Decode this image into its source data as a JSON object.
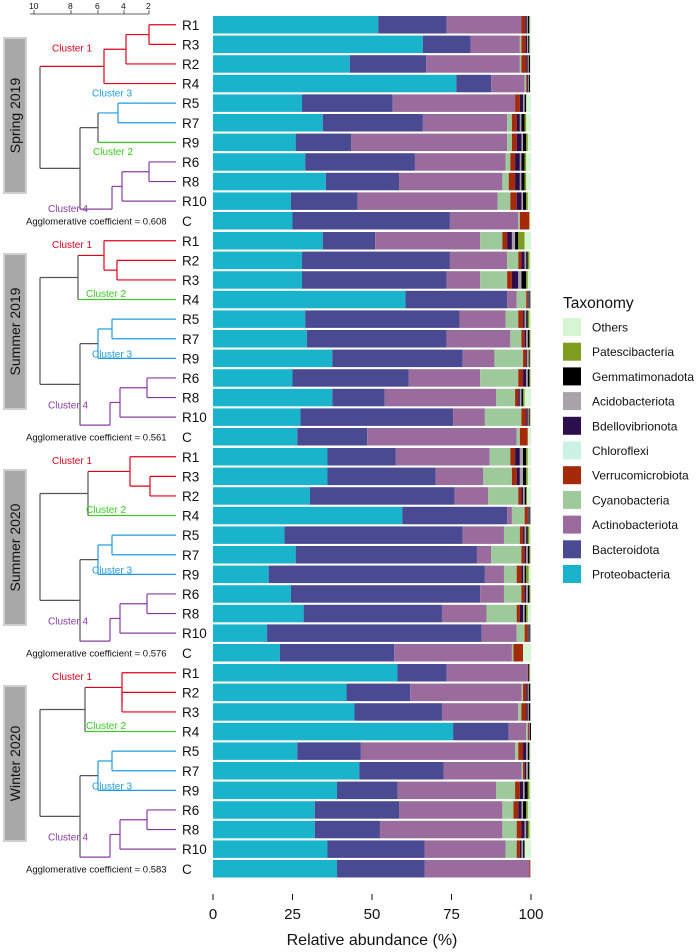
{
  "colors": {
    "Proteobacteria": "#1ab3cc",
    "Bacteroidota": "#4a4a93",
    "Actinobacteriota": "#9a6b9d",
    "Cyanobacteria": "#9ec99a",
    "Verrucomicrobiota": "#a52a0a",
    "Chloroflexi": "#ccf2e6",
    "Bdellovibrionota": "#2b0e4d",
    "Acidobacteriota": "#aaa2aa",
    "Gemmatimonadota": "#000000",
    "Patescibacteria": "#7e9c1e",
    "Others": "#d6f5d2",
    "cluster1": "#e3001b",
    "cluster2": "#35cf1c",
    "cluster3": "#1e9ce0",
    "cluster4": "#8a3ca5",
    "trunk": "#555555"
  },
  "scale_ticks": [
    "10",
    "8",
    "6",
    "4",
    "2"
  ],
  "chart_data": {
    "type": "bar",
    "orientation": "horizontal",
    "stacked": true,
    "xlabel": "Relative abundance (%)",
    "xlim": [
      0,
      100
    ],
    "xticks": [
      "0",
      "25",
      "50",
      "75",
      "100"
    ],
    "legend": {
      "title": "Taxonomy",
      "position": "right",
      "entries": [
        "Others",
        "Patescibacteria",
        "Gemmatimonadota",
        "Acidobacteriota",
        "Bdellovibrionota",
        "Chloroflexi",
        "Verrucomicrobiota",
        "Cyanobacteria",
        "Actinobacteriota",
        "Bacteroidota",
        "Proteobacteria"
      ]
    },
    "series_order": [
      "Proteobacteria",
      "Bacteroidota",
      "Actinobacteriota",
      "Cyanobacteria",
      "Verrucomicrobiota",
      "Chloroflexi",
      "Bdellovibrionota",
      "Acidobacteriota",
      "Gemmatimonadota",
      "Patescibacteria",
      "Others"
    ],
    "panels": [
      {
        "season": "Spring 2019",
        "coefficient": "Agglomerative coefficient = 0.608",
        "clusters": [
          "Cluster 1",
          "Cluster 3",
          "Cluster 2",
          "Cluster 4"
        ],
        "rows": [
          {
            "label": "R1",
            "values": [
              52,
              21.5,
              23.5,
              0,
              1.2,
              0,
              0.5,
              0.3,
              0.5,
              0,
              0.5
            ]
          },
          {
            "label": "R3",
            "values": [
              66,
              15,
              15.5,
              0.5,
              1.3,
              0,
              0.5,
              0.3,
              0.4,
              0,
              0.5
            ]
          },
          {
            "label": "R2",
            "values": [
              43,
              24,
              29.5,
              0.5,
              1.5,
              0,
              0.5,
              0.3,
              0.4,
              0,
              0.3
            ]
          },
          {
            "label": "R4",
            "values": [
              76.5,
              11,
              10.5,
              0.5,
              0.3,
              0,
              0.3,
              0.2,
              0.4,
              0,
              0.3
            ]
          },
          {
            "label": "R5",
            "values": [
              28,
              28.5,
              38.5,
              0,
              1.5,
              0,
              1,
              0.5,
              0.5,
              0,
              1.5
            ]
          },
          {
            "label": "R7",
            "values": [
              34.5,
              31.5,
              26.5,
              1.5,
              1.5,
              0,
              1,
              0.5,
              1,
              0.5,
              1.5
            ]
          },
          {
            "label": "R9",
            "values": [
              26,
              17.5,
              49,
              1.5,
              1.5,
              0,
              1.5,
              0.5,
              1,
              0.5,
              1
            ]
          },
          {
            "label": "R6",
            "values": [
              29,
              34.5,
              28.5,
              1.5,
              1.5,
              0,
              1.5,
              0.5,
              1,
              0.5,
              1.5
            ]
          },
          {
            "label": "R8",
            "values": [
              35.5,
              23,
              32.5,
              2,
              2,
              0,
              1.5,
              0.5,
              1,
              0.5,
              1.5
            ]
          },
          {
            "label": "R10",
            "values": [
              24.5,
              21,
              44,
              4,
              2,
              0,
              1.5,
              0.5,
              1,
              0.5,
              1
            ]
          },
          {
            "label": "C",
            "values": [
              25,
              49.5,
              21.5,
              0.5,
              3,
              0,
              0,
              0,
              0,
              0,
              0.5
            ]
          }
        ]
      },
      {
        "season": "Summer 2019",
        "coefficient": "Agglomerative coefficient = 0.561",
        "clusters": [
          "Cluster 1",
          "Cluster 2",
          "Cluster 3",
          "Cluster 4"
        ],
        "rows": [
          {
            "label": "R1",
            "values": [
              34.5,
              16.5,
              33,
              7,
              1.5,
              0,
              1.5,
              1,
              1,
              2,
              2
            ]
          },
          {
            "label": "R2",
            "values": [
              28,
              46.5,
              18,
              3.5,
              1,
              0,
              1,
              0.5,
              0.5,
              0.5,
              0.5
            ]
          },
          {
            "label": "R3",
            "values": [
              28,
              45.5,
              10.5,
              8.5,
              1.5,
              0,
              2,
              1,
              1.5,
              0.5,
              1
            ]
          },
          {
            "label": "R4",
            "values": [
              60.5,
              32,
              3,
              3,
              0.5,
              0,
              0.3,
              0.2,
              0.3,
              0,
              0.2
            ]
          },
          {
            "label": "R5",
            "values": [
              29,
              48.5,
              14.5,
              4,
              1.5,
              0,
              0.5,
              0.5,
              0.5,
              0.5,
              0.5
            ]
          },
          {
            "label": "R7",
            "values": [
              29.5,
              44,
              20,
              3.5,
              1,
              0,
              0.5,
              0.5,
              0.5,
              0.3,
              0.2
            ]
          },
          {
            "label": "R9",
            "values": [
              37.5,
              41,
              10,
              9,
              1,
              0,
              0.3,
              0.5,
              0.3,
              0.2,
              0.2
            ]
          },
          {
            "label": "R6",
            "values": [
              25,
              36.5,
              22.5,
              12,
              1.5,
              0,
              1,
              0.5,
              0.5,
              0.3,
              0.2
            ]
          },
          {
            "label": "R8",
            "values": [
              37.5,
              16.5,
              35,
              6,
              1,
              0,
              0.5,
              0.5,
              0.5,
              0.5,
              2
            ]
          },
          {
            "label": "R10",
            "values": [
              27.5,
              48,
              10,
              11.5,
              1.5,
              0,
              0.5,
              0.3,
              0.3,
              0.2,
              0.2
            ]
          },
          {
            "label": "C",
            "values": [
              26.5,
              22,
              47,
              1,
              2.5,
              0,
              0,
              0,
              0,
              0,
              1
            ]
          }
        ]
      },
      {
        "season": "Summer 2020",
        "coefficient": "Agglomerative coefficient = 0.576",
        "clusters": [
          "Cluster 1",
          "Cluster 2",
          "Cluster 3",
          "Cluster 4"
        ],
        "rows": [
          {
            "label": "R1",
            "values": [
              36,
              21.5,
              29.5,
              6.5,
              1.5,
              0,
              1.5,
              1,
              1,
              0.5,
              1
            ]
          },
          {
            "label": "R3",
            "values": [
              36,
              34,
              15,
              9,
              1.5,
              0,
              1,
              1,
              1,
              0.5,
              1
            ]
          },
          {
            "label": "R2",
            "values": [
              30.5,
              45.5,
              10.5,
              9.5,
              1,
              0,
              0.5,
              0.5,
              0.5,
              0.3,
              1.2
            ]
          },
          {
            "label": "R4",
            "values": [
              59.5,
              33,
              1.5,
              4,
              1,
              0,
              0.3,
              0.2,
              0.3,
              0,
              0.2
            ]
          },
          {
            "label": "R5",
            "values": [
              22.5,
              56,
              13,
              5,
              1,
              0,
              0.5,
              0.5,
              0.5,
              0.5,
              0.5
            ]
          },
          {
            "label": "R7",
            "values": [
              26,
              57,
              4.5,
              9.5,
              1,
              0,
              0.5,
              0.5,
              0.5,
              0.3,
              0.2
            ]
          },
          {
            "label": "R9",
            "values": [
              17.5,
              68,
              6,
              4,
              1.5,
              0,
              0.5,
              0.5,
              0.5,
              0.8,
              0.7
            ]
          },
          {
            "label": "R6",
            "values": [
              24.5,
              59.5,
              7.5,
              5.5,
              1,
              0,
              0.5,
              0.5,
              0.5,
              0.3,
              0.2
            ]
          },
          {
            "label": "R8",
            "values": [
              28.5,
              43.5,
              14,
              9.5,
              1,
              0,
              1,
              0.5,
              0.5,
              0.5,
              1
            ]
          },
          {
            "label": "R10",
            "values": [
              17,
              67.5,
              11,
              2.5,
              1,
              0,
              0.3,
              0.2,
              0.3,
              0,
              0.2
            ]
          },
          {
            "label": "C",
            "values": [
              21,
              36,
              37,
              0.5,
              3,
              0,
              0,
              0,
              0,
              0,
              2.5
            ]
          }
        ]
      },
      {
        "season": "Winter 2020",
        "coefficient": "Agglomerative coefficient = 0.583",
        "clusters": [
          "Cluster 1",
          "Cluster 2",
          "Cluster 3",
          "Cluster 4"
        ],
        "rows": [
          {
            "label": "R1",
            "values": [
              58,
              15.5,
              25.5,
              0,
              0.2,
              0,
              0,
              0,
              0.3,
              0,
              0.5
            ]
          },
          {
            "label": "R2",
            "values": [
              42,
              20,
              35,
              0.5,
              1,
              0,
              0.5,
              0.3,
              0.5,
              0,
              0.2
            ]
          },
          {
            "label": "R3",
            "values": [
              44.5,
              27.5,
              24,
              1,
              1.5,
              0,
              0.5,
              0.3,
              0.5,
              0,
              0.2
            ]
          },
          {
            "label": "R4",
            "values": [
              75.5,
              17.5,
              5.5,
              0.5,
              0.3,
              0,
              0.2,
              0.2,
              0.3,
              0,
              0
            ]
          },
          {
            "label": "R5",
            "values": [
              26.5,
              20,
              48.5,
              1,
              1.5,
              0,
              1,
              0.5,
              0.5,
              0,
              0.5
            ]
          },
          {
            "label": "R7",
            "values": [
              46,
              26.5,
              24.5,
              0.5,
              0.5,
              0,
              0.5,
              0.5,
              0.5,
              0,
              0.5
            ]
          },
          {
            "label": "R9",
            "values": [
              39,
              19,
              31,
              6,
              1.5,
              0,
              1,
              0.5,
              1,
              0.5,
              0.5
            ]
          },
          {
            "label": "R6",
            "values": [
              32,
              26.5,
              32.5,
              3.5,
              1.5,
              0,
              1,
              0.5,
              1,
              0.5,
              1
            ]
          },
          {
            "label": "R8",
            "values": [
              32,
              20.5,
              38.5,
              4.5,
              1.5,
              0,
              1,
              0.5,
              0.5,
              0.5,
              0.5
            ]
          },
          {
            "label": "R10",
            "values": [
              36,
              30.5,
              25.5,
              3.5,
              1,
              0,
              0.5,
              0.5,
              0.5,
              0,
              2
            ]
          },
          {
            "label": "C",
            "values": [
              39,
              27.5,
              33,
              0,
              0.3,
              0,
              0,
              0,
              0,
              0,
              0.2
            ]
          }
        ]
      }
    ]
  }
}
